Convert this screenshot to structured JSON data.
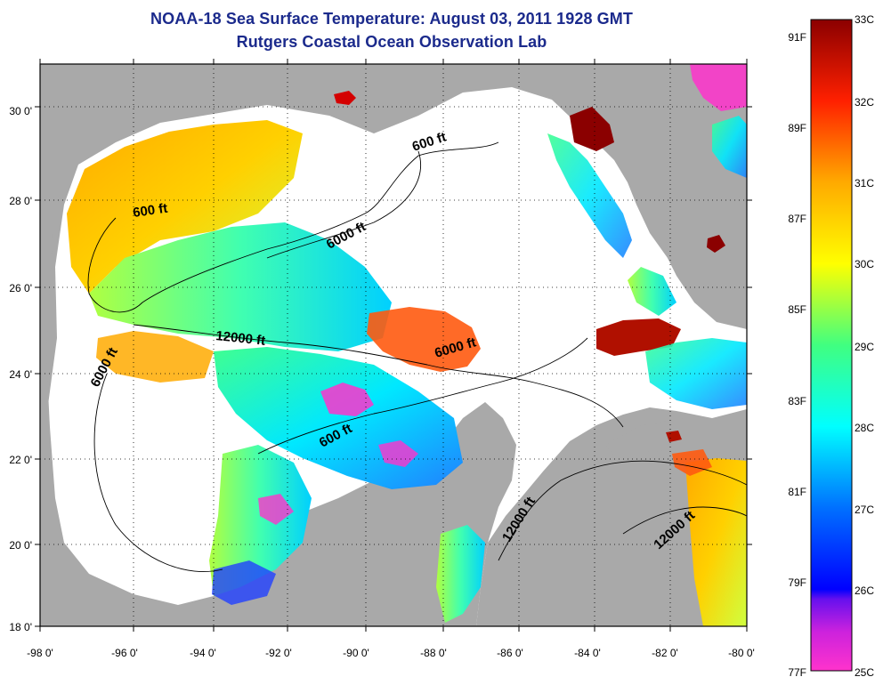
{
  "header": {
    "title": "NOAA-18 Sea Surface Temperature:  August 03, 2011 1928 GMT",
    "subtitle": "Rutgers Coastal Ocean Observation Lab"
  },
  "map": {
    "lon_labels": [
      "-98 0'",
      "-96 0'",
      "-94 0'",
      "-92 0'",
      "-90 0'",
      "-88 0'",
      "-86 0'",
      "-84 0'",
      "-82 0'",
      "-80 0'"
    ],
    "lat_labels": [
      "30 0'",
      "28 0'",
      "26 0'",
      "24 0'",
      "22 0'",
      "20 0'",
      "18 0'"
    ],
    "contour_labels": [
      {
        "text": "600 ft"
      },
      {
        "text": "600 ft"
      },
      {
        "text": "6000 ft"
      },
      {
        "text": "12000 ft"
      },
      {
        "text": "6000 ft"
      },
      {
        "text": "6000 ft"
      },
      {
        "text": "600 ft"
      },
      {
        "text": "12000 ft"
      },
      {
        "text": "12000 ft"
      }
    ],
    "colors": {
      "land": "#a9a9a9",
      "no_data": "#ffffff",
      "frame": "#000000"
    }
  },
  "colorbar": {
    "celsius_labels": [
      "33C",
      "32C",
      "31C",
      "30C",
      "29C",
      "28C",
      "27C",
      "26C",
      "25C"
    ],
    "fahrenheit_labels": [
      "91F",
      "89F",
      "87F",
      "85F",
      "83F",
      "81F",
      "79F",
      "77F"
    ],
    "colors": [
      "#ff33cc",
      "#aa22ee",
      "#0000ff",
      "#0080ff",
      "#00ffff",
      "#00ff80",
      "#ffff00",
      "#ffaa00",
      "#ff4000",
      "#d40000",
      "#8b0000"
    ]
  }
}
